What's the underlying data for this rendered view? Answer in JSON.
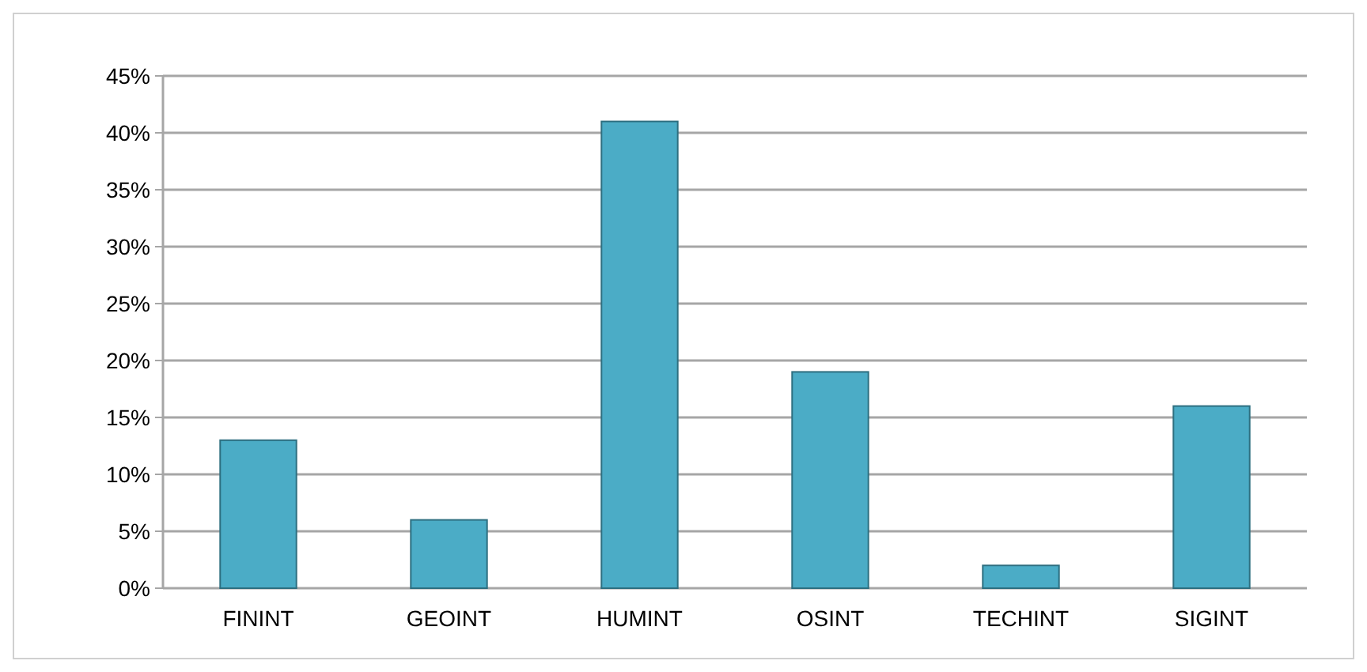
{
  "chart_data": {
    "type": "bar",
    "categories": [
      "FININT",
      "GEOINT",
      "HUMINT",
      "OSINT",
      "TECHINT",
      "SIGINT"
    ],
    "values": [
      13,
      6,
      41,
      19,
      2,
      16
    ],
    "color": "#4bacc6",
    "ylim": [
      0,
      45
    ],
    "yticks": [
      {
        "value": 0,
        "label": "0%"
      },
      {
        "value": 5,
        "label": "5%"
      },
      {
        "value": 10,
        "label": "10%"
      },
      {
        "value": 15,
        "label": "15%"
      },
      {
        "value": 20,
        "label": "20%"
      },
      {
        "value": 25,
        "label": "25%"
      },
      {
        "value": 30,
        "label": "30%"
      },
      {
        "value": 35,
        "label": "35%"
      },
      {
        "value": 40,
        "label": "40%"
      },
      {
        "value": 45,
        "label": "45%"
      }
    ],
    "grid": "y"
  }
}
